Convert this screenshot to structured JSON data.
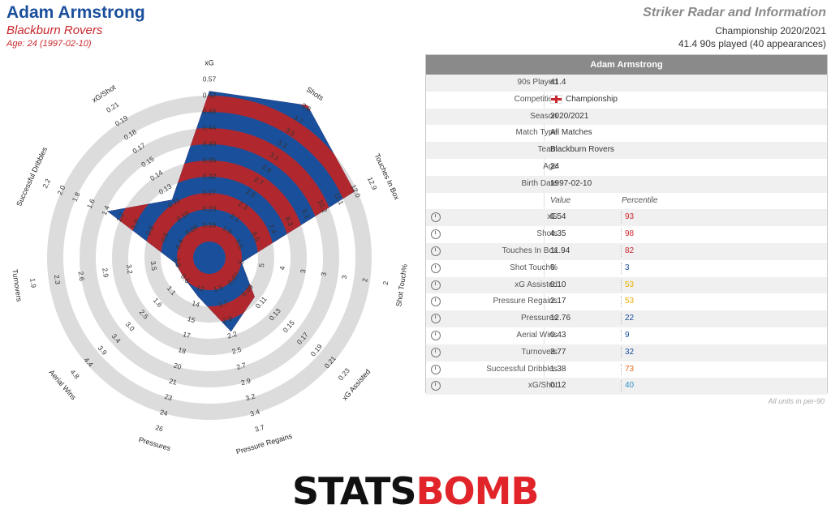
{
  "header": {
    "player_name": "Adam Armstrong",
    "team": "Blackburn Rovers",
    "age_line": "Age: 24 (1997-02-10)",
    "radar_title": "Striker Radar and Information",
    "competition_season": "Championship 2020/2021",
    "played": "41.4 90s played (40 appearances)"
  },
  "colors": {
    "player_blue": "#1a4f9c",
    "accent_red": "#c8282d",
    "ring_grey": "#dcdcdc",
    "header_grey": "#8a8a8a"
  },
  "chart_data": {
    "type": "radar",
    "axes": [
      {
        "label": "xG",
        "ticks": [
          "0.19",
          "0.23",
          "0.27",
          "0.32",
          "0.36",
          "0.40",
          "0.44",
          "0.48",
          "0.52",
          "0.57"
        ],
        "value": 0.54
      },
      {
        "label": "Shots",
        "ticks": [
          "1.9",
          "2.1",
          "2.3",
          "2.5",
          "2.7",
          "2.9",
          "3.1",
          "3.3",
          "3.5",
          "3.7",
          "3.9"
        ],
        "value": 4.35
      },
      {
        "label": "Touches In Box",
        "ticks": [
          "5.5",
          "6.5",
          "7.4",
          "8.3",
          "9.2",
          "10.2",
          "11.1",
          "12.0",
          "12.9"
        ],
        "value": 11.94
      },
      {
        "label": "Shot Touch%",
        "ticks": [
          "5",
          "5",
          "4",
          "3",
          "3",
          "3",
          "2",
          "2"
        ],
        "value": 6
      },
      {
        "label": "xG Assisted",
        "ticks": [
          "0.07",
          "0.09",
          "0.11",
          "0.13",
          "0.15",
          "0.17",
          "0.19",
          "0.21",
          "0.23"
        ],
        "value": 0.1
      },
      {
        "label": "Pressure Regains",
        "ticks": [
          "1.5",
          "1.7",
          "2.0",
          "2.2",
          "2.5",
          "2.7",
          "2.9",
          "3.2",
          "3.4",
          "3.7"
        ],
        "value": 2.17
      },
      {
        "label": "Pressures",
        "ticks": [
          "12",
          "14",
          "15",
          "17",
          "18",
          "20",
          "21",
          "23",
          "24",
          "26"
        ],
        "value": 12.76
      },
      {
        "label": "Aerial Wins",
        "ticks": [
          "0.6",
          "1.1",
          "1.6",
          "2.5",
          "3.0",
          "3.4",
          "3.9",
          "4.4",
          "4.8"
        ],
        "value": 0.43
      },
      {
        "label": "Turnovers",
        "ticks": [
          "3.8",
          "3.5",
          "3.2",
          "2.9",
          "2.6",
          "2.3",
          "1.9"
        ],
        "value": 3.77
      },
      {
        "label": "Successful Dribbles",
        "ticks": [
          "0.4",
          "0.6",
          "0.8",
          "1.0",
          "1.2",
          "1.4",
          "1.6",
          "1.8",
          "2.0",
          "2.2"
        ],
        "value": 1.38
      },
      {
        "label": "xG/Shot",
        "ticks": [
          "0.09",
          "0.10",
          "0.11",
          "0.13",
          "0.14",
          "0.15",
          "0.17",
          "0.18",
          "0.19",
          "0.21"
        ],
        "value": 0.12
      }
    ],
    "rings": 5,
    "fill_colors": [
      "#1a4f9c",
      "#b0282e"
    ]
  },
  "info": {
    "title": "Adam Armstrong",
    "rows": [
      {
        "label": "90s Played",
        "value": "41.4"
      },
      {
        "label": "Competition",
        "value": "Championship"
      },
      {
        "label": "Season",
        "value": "2020/2021"
      },
      {
        "label": "Match Type",
        "value": "All Matches"
      },
      {
        "label": "Team",
        "value": "Blackburn Rovers"
      },
      {
        "label": "Age",
        "value": "24"
      },
      {
        "label": "Birth Date",
        "value": "1997-02-10"
      }
    ],
    "value_header": "Value",
    "percentile_header": "Percentile",
    "metrics": [
      {
        "label": "xG",
        "value": "0.54",
        "percentile": "93",
        "color": "#c8282d",
        "icon": "xg-icon"
      },
      {
        "label": "Shots",
        "value": "4.35",
        "percentile": "98",
        "color": "#c8282d",
        "icon": "shots-icon"
      },
      {
        "label": "Touches In Box",
        "value": "11.94",
        "percentile": "82",
        "color": "#c8282d",
        "icon": "touches-icon"
      },
      {
        "label": "Shot Touch%",
        "value": "6",
        "percentile": "3",
        "color": "#1a4f9c",
        "icon": "shot-touch-icon"
      },
      {
        "label": "xG Assisted",
        "value": "0.10",
        "percentile": "53",
        "color": "#e8b000",
        "icon": "xg-assisted-icon"
      },
      {
        "label": "Pressure Regains",
        "value": "2.17",
        "percentile": "53",
        "color": "#e8b000",
        "icon": "pressure-regains-icon"
      },
      {
        "label": "Pressures",
        "value": "12.76",
        "percentile": "22",
        "color": "#1a4f9c",
        "icon": "pressures-icon"
      },
      {
        "label": "Aerial Wins",
        "value": "0.43",
        "percentile": "9",
        "color": "#1a4f9c",
        "icon": "aerial-icon"
      },
      {
        "label": "Turnovers",
        "value": "3.77",
        "percentile": "32",
        "color": "#1a4f9c",
        "icon": "turnovers-icon"
      },
      {
        "label": "Successful Dribbles",
        "value": "1.38",
        "percentile": "73",
        "color": "#e06a20",
        "icon": "dribbles-icon"
      },
      {
        "label": "xG/Shot",
        "value": "0.12",
        "percentile": "40",
        "color": "#2a8fc0",
        "icon": "xg-shot-icon"
      }
    ],
    "units_note": "All units in per-90"
  },
  "logo": {
    "part1": "STATS",
    "part2": "BOMB"
  }
}
